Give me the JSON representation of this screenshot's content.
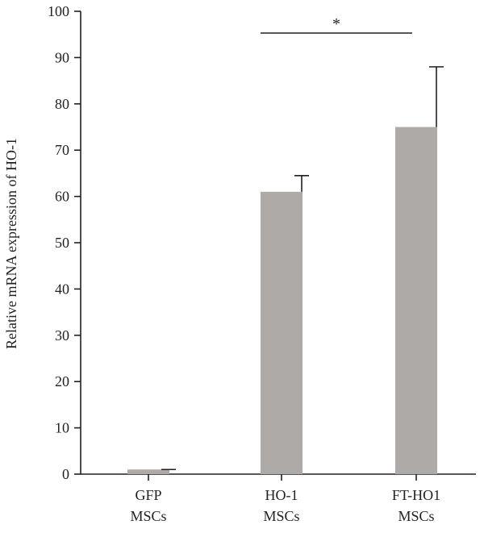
{
  "chart_data": {
    "type": "bar",
    "categories": [
      [
        "GFP",
        "MSCs"
      ],
      [
        "HO-1",
        "MSCs"
      ],
      [
        "FT-HO1",
        "MSCs"
      ]
    ],
    "values": [
      1.0,
      61.0,
      75.0
    ],
    "error_upper": [
      1.0,
      64.5,
      88.0
    ],
    "ylabel": "Relative mRNA expression of HO-1",
    "xlabel": "",
    "ylim": [
      0,
      100
    ],
    "yticks": [
      0,
      10,
      20,
      30,
      40,
      50,
      60,
      70,
      80,
      90,
      100
    ],
    "grid": false,
    "significance": [
      {
        "from_category": 1,
        "to_category": 2,
        "label": "*"
      }
    ],
    "colors": {
      "bar": "#aeaaa8",
      "axis": "#231f20",
      "error_bar": "#231f20"
    }
  }
}
